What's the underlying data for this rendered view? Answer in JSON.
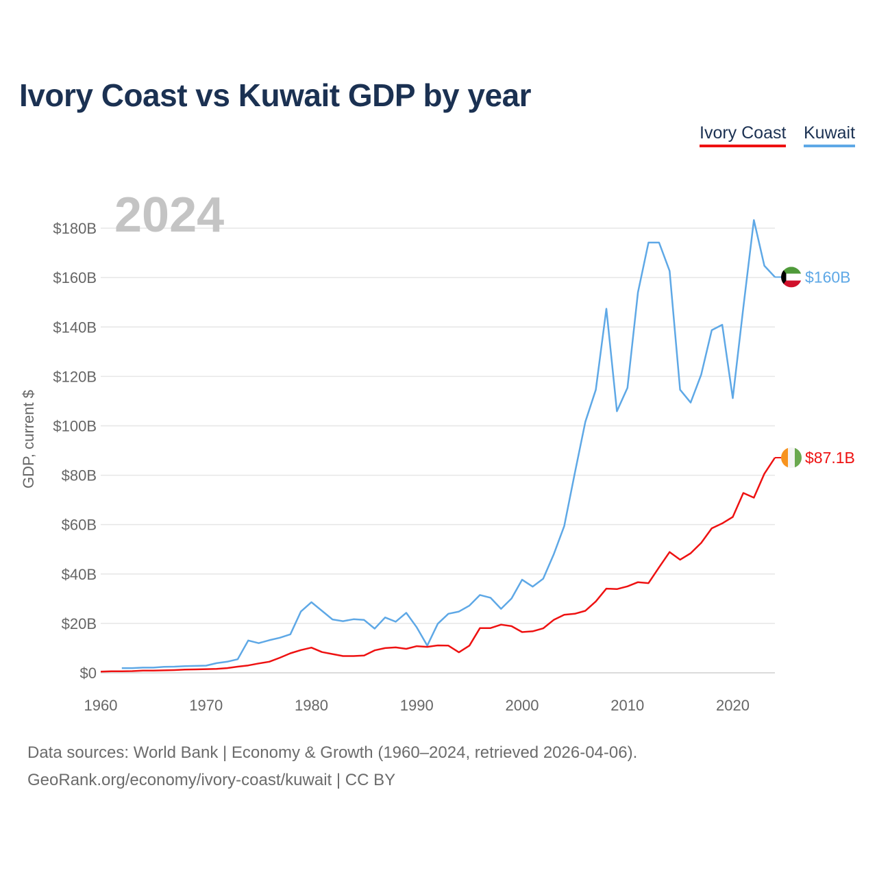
{
  "title": "Ivory Coast vs Kuwait GDP by year",
  "legend": [
    {
      "label": "Ivory Coast",
      "color": "#ee1111"
    },
    {
      "label": "Kuwait",
      "color": "#5ea8e6"
    }
  ],
  "footer": {
    "line1": "Data sources: World Bank | Economy & Growth (1960–2024, retrieved 2026-04-06).",
    "line2": "GeoRank.org/economy/ivory-coast/kuwait | CC BY"
  },
  "chart_data": {
    "type": "line",
    "title": "Ivory Coast vs Kuwait GDP by year",
    "year_watermark": "2024",
    "xlabel": "",
    "ylabel": "GDP, current $",
    "xlim": [
      1960,
      2024
    ],
    "ylim": [
      0,
      190
    ],
    "x_ticks": [
      1960,
      1970,
      1980,
      1990,
      2000,
      2010,
      2020
    ],
    "y_ticks": [
      0,
      20,
      40,
      60,
      80,
      100,
      120,
      140,
      160,
      180
    ],
    "y_tick_labels": [
      "$0",
      "$20B",
      "$40B",
      "$60B",
      "$80B",
      "$100B",
      "$120B",
      "$140B",
      "$160B",
      "$180B"
    ],
    "grid": true,
    "series": [
      {
        "name": "Kuwait",
        "color": "#5ea8e6",
        "end_label": "$160B",
        "flag": "kuwait-flag",
        "x": [
          1962,
          1963,
          1964,
          1965,
          1966,
          1967,
          1968,
          1969,
          1970,
          1971,
          1972,
          1973,
          1974,
          1975,
          1976,
          1977,
          1978,
          1979,
          1980,
          1981,
          1982,
          1983,
          1984,
          1985,
          1986,
          1987,
          1988,
          1989,
          1990,
          1991,
          1992,
          1993,
          1994,
          1995,
          1996,
          1997,
          1998,
          1999,
          2000,
          2001,
          2002,
          2003,
          2004,
          2005,
          2006,
          2007,
          2008,
          2009,
          2010,
          2011,
          2012,
          2013,
          2014,
          2015,
          2016,
          2017,
          2018,
          2019,
          2020,
          2021,
          2022,
          2023,
          2024
        ],
        "values": [
          1.9,
          1.9,
          2.1,
          2.1,
          2.4,
          2.5,
          2.7,
          2.8,
          2.9,
          3.9,
          4.5,
          5.5,
          13.1,
          12.0,
          13.2,
          14.2,
          15.6,
          24.8,
          28.6,
          25.1,
          21.6,
          20.9,
          21.7,
          21.4,
          17.9,
          22.4,
          20.7,
          24.3,
          18.4,
          11.0,
          19.9,
          23.9,
          24.8,
          27.2,
          31.5,
          30.4,
          25.9,
          30.1,
          37.7,
          34.9,
          38.1,
          47.9,
          59.4,
          80.8,
          101.6,
          114.6,
          147.4,
          105.9,
          115.4,
          154.0,
          174.2,
          174.2,
          162.7,
          114.6,
          109.4,
          120.7,
          138.7,
          140.9,
          111.2,
          147.9,
          183.3,
          164.8,
          160.2
        ]
      },
      {
        "name": "Ivory Coast",
        "color": "#ee1111",
        "end_label": "$87.1B",
        "flag": "ivory-coast-flag",
        "x": [
          1960,
          1961,
          1962,
          1963,
          1964,
          1965,
          1966,
          1967,
          1968,
          1969,
          1970,
          1971,
          1972,
          1973,
          1974,
          1975,
          1976,
          1977,
          1978,
          1979,
          1980,
          1981,
          1982,
          1983,
          1984,
          1985,
          1986,
          1987,
          1988,
          1989,
          1990,
          1991,
          1992,
          1993,
          1994,
          1995,
          1996,
          1997,
          1998,
          1999,
          2000,
          2001,
          2002,
          2003,
          2004,
          2005,
          2006,
          2007,
          2008,
          2009,
          2010,
          2011,
          2012,
          2013,
          2014,
          2015,
          2016,
          2017,
          2018,
          2019,
          2020,
          2021,
          2022,
          2023,
          2024
        ],
        "values": [
          0.5,
          0.6,
          0.6,
          0.7,
          0.9,
          0.9,
          1.0,
          1.1,
          1.3,
          1.4,
          1.5,
          1.6,
          1.9,
          2.5,
          3.0,
          3.8,
          4.5,
          6.1,
          7.9,
          9.2,
          10.2,
          8.4,
          7.6,
          6.8,
          6.8,
          7.0,
          9.1,
          10.0,
          10.3,
          9.7,
          10.8,
          10.5,
          11.1,
          11.0,
          8.3,
          11.0,
          18.1,
          18.1,
          19.5,
          18.9,
          16.5,
          16.8,
          18.0,
          21.4,
          23.5,
          23.9,
          25.1,
          28.9,
          34.1,
          33.9,
          35.0,
          36.7,
          36.3,
          42.7,
          48.9,
          45.8,
          48.4,
          52.6,
          58.5,
          60.5,
          63.1,
          72.8,
          70.9,
          80.6,
          87.1
        ]
      }
    ]
  }
}
